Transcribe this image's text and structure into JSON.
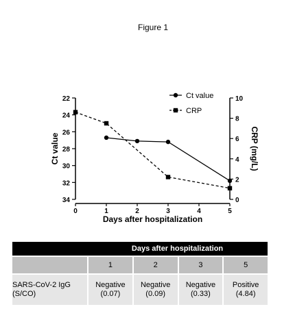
{
  "figure_title": "Figure 1",
  "chart_data": {
    "type": "line",
    "x": [
      0,
      1,
      2,
      3,
      4,
      5
    ],
    "xlabel": "Days after hospitalization",
    "ylabel": "Ct value",
    "y2label": "CRP (mg/L)",
    "xlim": [
      0,
      5
    ],
    "ylim": [
      22,
      34
    ],
    "y_inverted": true,
    "y2lim": [
      0,
      10
    ],
    "x_ticks": [
      "0",
      "1",
      "2",
      "3",
      "4",
      "5"
    ],
    "y_ticks": [
      "22",
      "24",
      "26",
      "28",
      "30",
      "32",
      "34"
    ],
    "y2_ticks": [
      "0",
      "2",
      "4",
      "6",
      "8",
      "10"
    ],
    "legend_position": "top-right",
    "grid": false,
    "series": [
      {
        "name": "Ct value",
        "axis": "left",
        "marker": "circle",
        "line": "solid",
        "color": "#000000",
        "points": [
          [
            1,
            26.7
          ],
          [
            2,
            27.1
          ],
          [
            3,
            27.2
          ],
          [
            5,
            31.8
          ]
        ]
      },
      {
        "name": "CRP",
        "axis": "right",
        "marker": "square",
        "line": "dashed",
        "color": "#000000",
        "points": [
          [
            0,
            8.6
          ],
          [
            1,
            7.5
          ],
          [
            3,
            2.2
          ],
          [
            5,
            1.1
          ]
        ]
      }
    ]
  },
  "table": {
    "header_title": "Days after hospitalization",
    "day_labels": [
      "1",
      "2",
      "3",
      "5"
    ],
    "row_label_line1": "SARS-CoV-2 IgG",
    "row_label_line2": "(S/CO)",
    "results": [
      {
        "status": "Negative",
        "value": "(0.07)"
      },
      {
        "status": "Negative",
        "value": "(0.09)"
      },
      {
        "status": "Negative",
        "value": "(0.33)"
      },
      {
        "status": "Positive",
        "value": "(4.84)"
      }
    ]
  }
}
